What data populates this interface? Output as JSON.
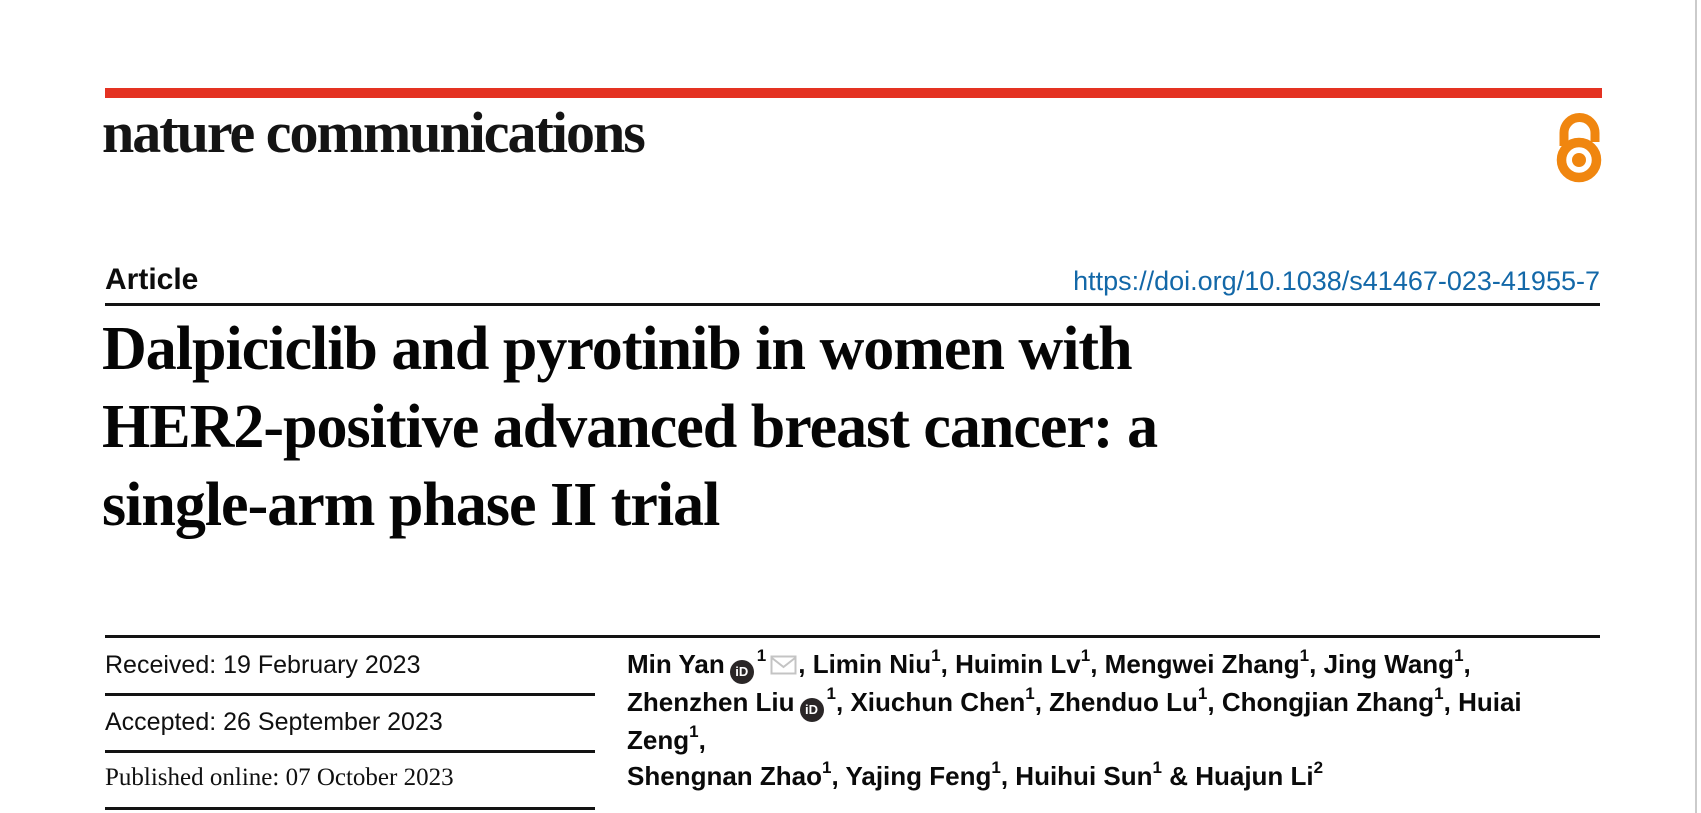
{
  "journal": {
    "wordmark": "nature communications"
  },
  "icons": {
    "open_access": "open-padlock-icon",
    "orcid": "orcid-id-icon",
    "email": "envelope-icon"
  },
  "header": {
    "article_label": "Article",
    "doi": "https://doi.org/10.1038/s41467-023-41955-7"
  },
  "title": "Dalpiciclib and pyrotinib in women with HER2-positive advanced breast cancer: a single-arm phase II trial",
  "title_lines": [
    "Dalpiciclib and pyrotinib in women with",
    "HER2-positive advanced breast cancer: a",
    "single-arm phase II trial"
  ],
  "meta_rows": [
    {
      "label": "Received:",
      "value": "19 February 2023"
    },
    {
      "label": "Accepted:",
      "value": "26 September 2023"
    },
    {
      "label": "Published online:",
      "value": "07 October 2023"
    }
  ],
  "authors": {
    "orcid_icon_label": "iD",
    "lines": [
      [
        {
          "name": "Min Yan",
          "orcid": true,
          "sup": "1",
          "email": true,
          "post": ", "
        },
        {
          "name": "Limin Niu",
          "sup": "1",
          "post": ", "
        },
        {
          "name": "Huimin Lv",
          "sup": "1",
          "post": ", "
        },
        {
          "name": "Mengwei Zhang",
          "sup": "1",
          "post": ", "
        },
        {
          "name": "Jing Wang",
          "sup": "1",
          "post": ","
        }
      ],
      [
        {
          "name": "Zhenzhen Liu",
          "orcid": true,
          "sup": "1",
          "post": ", "
        },
        {
          "name": "Xiuchun Chen",
          "sup": "1",
          "post": ", "
        },
        {
          "name": "Zhenduo Lu",
          "sup": "1",
          "post": ", "
        },
        {
          "name": "Chongjian Zhang",
          "sup": "1",
          "post": ", "
        },
        {
          "name": "Huiai Zeng",
          "sup": "1",
          "post": ","
        }
      ],
      [
        {
          "name": "Shengnan Zhao",
          "sup": "1",
          "post": ", "
        },
        {
          "name": "Yajing Feng",
          "sup": "1",
          "post": ", "
        },
        {
          "name": "Huihui Sun",
          "sup": "1",
          "post": " & "
        },
        {
          "name": "Huajun Li",
          "sup": "2",
          "post": ""
        }
      ]
    ]
  },
  "colors": {
    "brand_red": "#e43222",
    "link_blue": "#1368a8",
    "open_access_orange": "#f0860f",
    "page_edge_gray": "#cbcbcb"
  }
}
